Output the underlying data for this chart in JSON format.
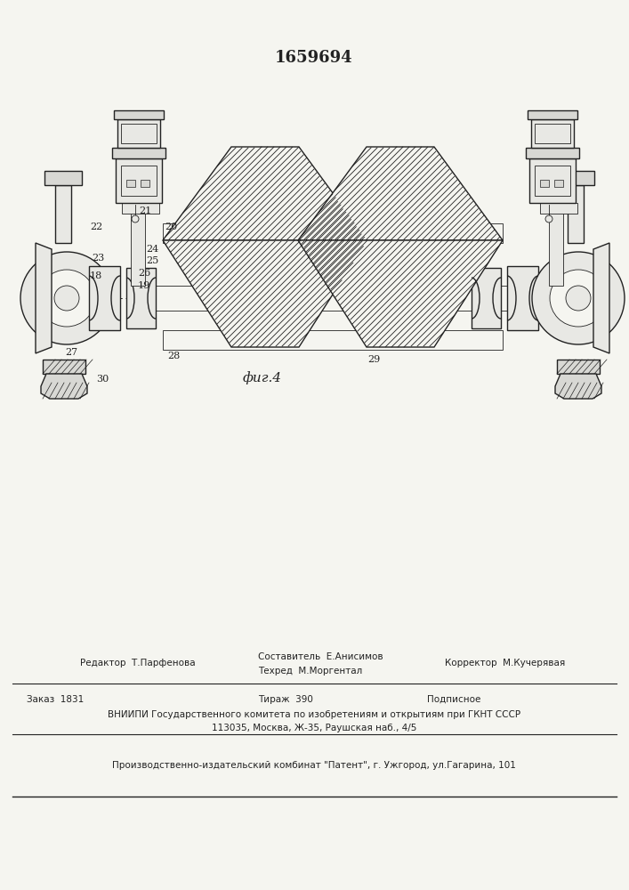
{
  "patent_number": "1659694",
  "fig_label": "фиг.4",
  "bg_color": "#f5f5f0",
  "line_color": "#222222",
  "lw_main": 1.0,
  "lw_thin": 0.6,
  "lw_thick": 1.4,
  "footer": {
    "editor": "Редактор  Т.Парфенова",
    "composer": "Составитель  Е.Анисимов",
    "techred": "Техред  М.Моргентал",
    "corrector": "Корректор  М.Кучерявая",
    "order": "Заказ  1831",
    "tirazh": "Тираж  390",
    "podpisnoe": "Подписное",
    "vniiipi": "ВНИИПИ Государственного комитета по изобретениям и открытиям при ГКНТ СССР",
    "address": "113035, Москва, Ж-35, Раушская наб., 4/5",
    "publisher": "Производственно-издательский комбинат \"Патент\", г. Ужгород, ул.Гагарина, 101"
  }
}
